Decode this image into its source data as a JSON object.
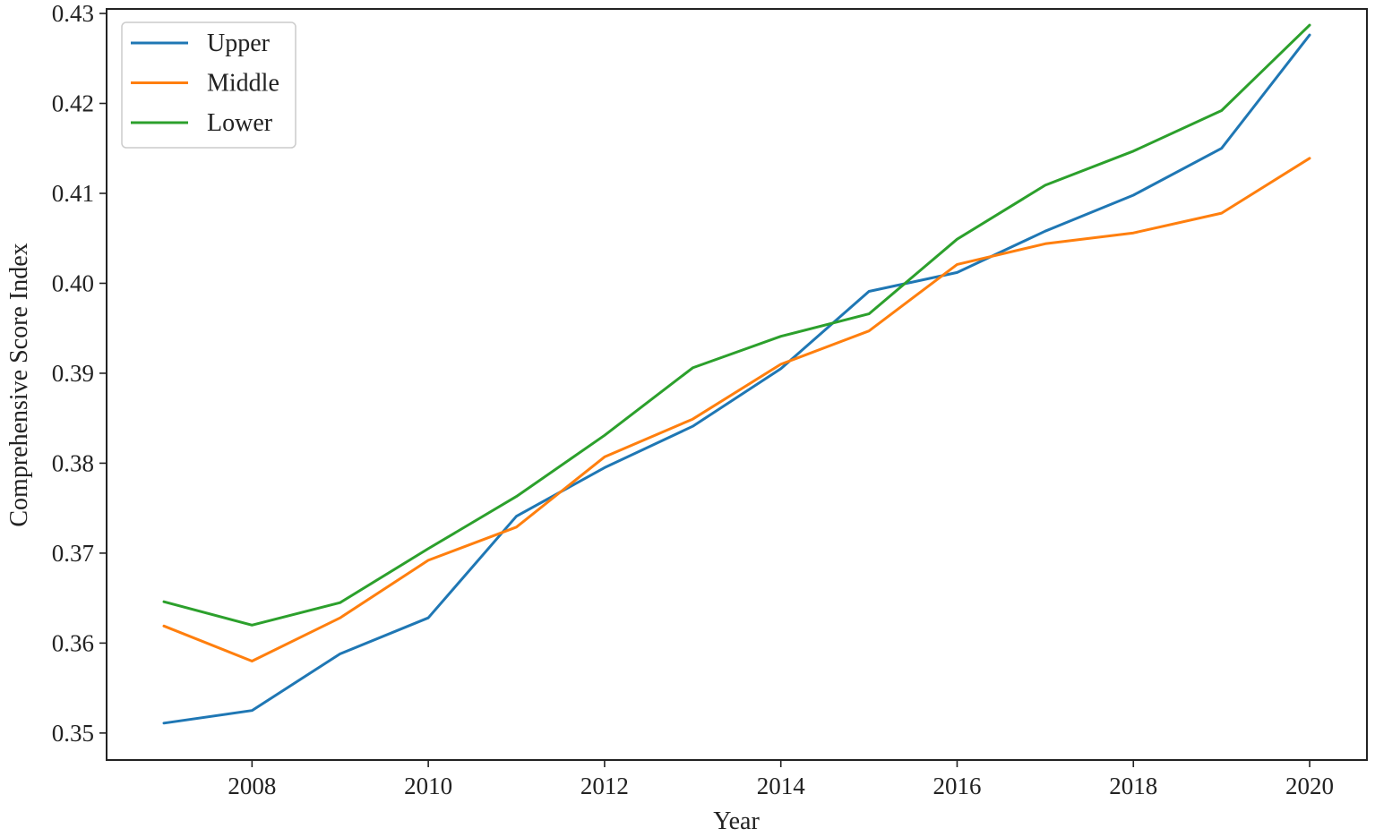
{
  "chart_data": {
    "type": "line",
    "title": "",
    "xlabel": "Year",
    "ylabel": "Comprehensive Score Index",
    "x": [
      2007,
      2008,
      2009,
      2010,
      2011,
      2012,
      2013,
      2014,
      2015,
      2016,
      2017,
      2018,
      2019,
      2020
    ],
    "xlim": [
      2006.35,
      2020.65
    ],
    "ylim": [
      0.347,
      0.4305
    ],
    "xticks": [
      2008,
      2010,
      2012,
      2014,
      2016,
      2018,
      2020
    ],
    "xtick_labels": [
      "2008",
      "2010",
      "2012",
      "2014",
      "2016",
      "2018",
      "2020"
    ],
    "yticks": [
      0.35,
      0.36,
      0.37,
      0.38,
      0.39,
      0.4,
      0.41,
      0.42,
      0.43
    ],
    "ytick_labels": [
      "0.35",
      "0.36",
      "0.37",
      "0.38",
      "0.39",
      "0.40",
      "0.41",
      "0.42",
      "0.43"
    ],
    "grid": false,
    "legend_position": "top-left",
    "series": [
      {
        "name": "Upper",
        "color": "#1f77b4",
        "values": [
          0.3511,
          0.3525,
          0.3588,
          0.3628,
          0.3741,
          0.3795,
          0.3841,
          0.3905,
          0.3991,
          0.4012,
          0.4058,
          0.4098,
          0.415,
          0.4276
        ]
      },
      {
        "name": "Middle",
        "color": "#ff7f0e",
        "values": [
          0.3619,
          0.358,
          0.3628,
          0.3692,
          0.3729,
          0.3807,
          0.3849,
          0.391,
          0.3947,
          0.4021,
          0.4044,
          0.4056,
          0.4078,
          0.4139
        ]
      },
      {
        "name": "Lower",
        "color": "#2ca02c",
        "values": [
          0.3646,
          0.362,
          0.3645,
          0.3705,
          0.3763,
          0.3831,
          0.3906,
          0.3941,
          0.3966,
          0.4049,
          0.4109,
          0.4147,
          0.4192,
          0.4287
        ]
      }
    ]
  }
}
